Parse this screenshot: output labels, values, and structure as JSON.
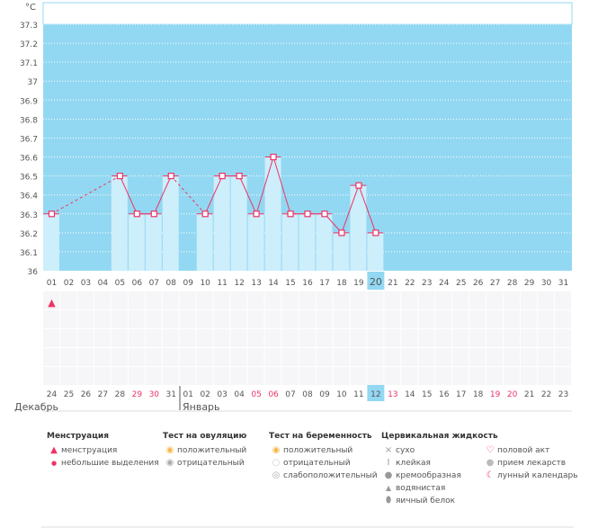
{
  "chart_data": {
    "type": "bar",
    "title": "",
    "ylabel": "°C",
    "ylim": [
      36,
      37.3
    ],
    "yticks": [
      "36",
      "36.1",
      "36.2",
      "36.3",
      "36.4",
      "36.5",
      "36.6",
      "36.7",
      "36.8",
      "36.9",
      "37",
      "37.1",
      "37.2",
      "37.3"
    ],
    "categories": [
      "01",
      "02",
      "03",
      "04",
      "05",
      "06",
      "07",
      "08",
      "09",
      "10",
      "11",
      "12",
      "13",
      "14",
      "15",
      "16",
      "17",
      "18",
      "19",
      "20",
      "21",
      "22",
      "23",
      "24",
      "25",
      "26",
      "27",
      "28",
      "29",
      "30",
      "31"
    ],
    "values": [
      36.3,
      null,
      null,
      null,
      36.5,
      36.3,
      36.3,
      36.5,
      null,
      36.3,
      36.5,
      36.5,
      36.3,
      36.6,
      36.3,
      36.3,
      36.3,
      36.2,
      36.45,
      36.2,
      null,
      null,
      null,
      null,
      null,
      null,
      null,
      null,
      null,
      null,
      null
    ],
    "current_day": "20",
    "grid": true
  },
  "calendar": {
    "dates": [
      "24",
      "25",
      "26",
      "27",
      "28",
      "29",
      "30",
      "31",
      "01",
      "02",
      "03",
      "04",
      "05",
      "06",
      "07",
      "08",
      "09",
      "10",
      "11",
      "12",
      "13",
      "14",
      "15",
      "16",
      "17",
      "18",
      "19",
      "20",
      "21",
      "22",
      "23"
    ],
    "weekend": [
      false,
      false,
      false,
      false,
      false,
      true,
      true,
      false,
      false,
      false,
      false,
      false,
      true,
      true,
      false,
      false,
      false,
      false,
      false,
      false,
      true,
      false,
      false,
      false,
      false,
      false,
      true,
      true,
      false,
      false,
      false
    ],
    "today_index": 19,
    "months": [
      "Декабрь",
      "Январь"
    ],
    "menstruation_marks": [
      0
    ]
  },
  "legend": {
    "menstruation": {
      "title": "Менструация",
      "items": [
        "менструация",
        "небольшие выделения"
      ]
    },
    "ovulation": {
      "title": "Тест на овуляцию",
      "items": [
        "положительный",
        "отрицательный"
      ]
    },
    "pregnancy": {
      "title": "Тест на беременность",
      "items": [
        "положительный",
        "отрицательный",
        "слабоположительный"
      ]
    },
    "cervical": {
      "title": "Цервикальная жидкость",
      "items": [
        "сухо",
        "клейкая",
        "кремообразная",
        "водянистая",
        "яичный белок"
      ]
    },
    "other": {
      "items": [
        "половой акт",
        "прием лекарств",
        "лунный календарь"
      ]
    }
  },
  "colors": {
    "plot_bg": "#93d8f2",
    "bar": "#cdeefb",
    "line": "#ee3366",
    "weekend": "#ee3366",
    "today": "#93d8f2"
  }
}
